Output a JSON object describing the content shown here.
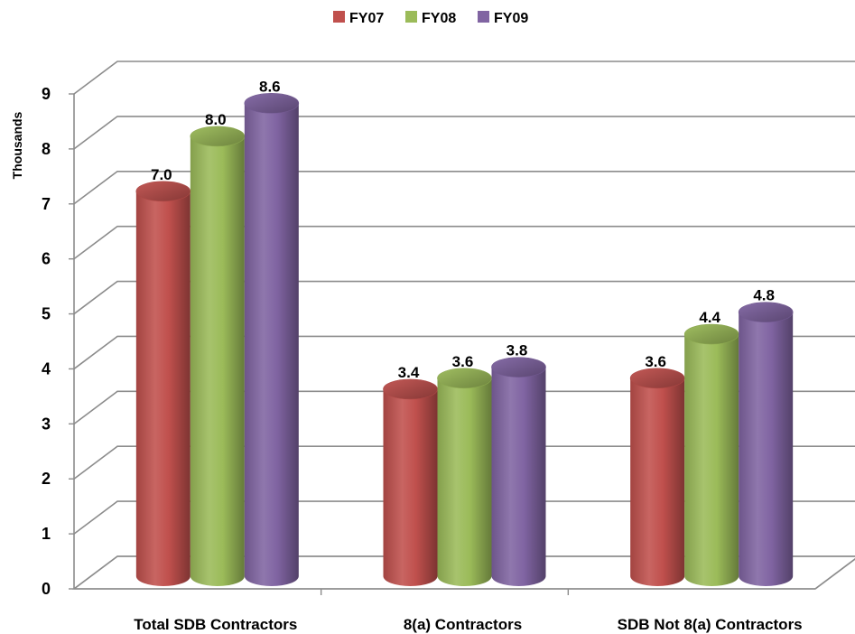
{
  "chart_data": {
    "type": "bar",
    "style": "3d-cylinder",
    "title": "",
    "xlabel": "",
    "ylabel": "Thousands",
    "ylim": [
      0,
      9
    ],
    "yticks": [
      0,
      1,
      2,
      3,
      4,
      5,
      6,
      7,
      8,
      9
    ],
    "grid": true,
    "legend_position": "top",
    "categories": [
      "Total SDB Contractors",
      "8(a) Contractors",
      "SDB Not 8(a) Contractors"
    ],
    "series": [
      {
        "name": "FY07",
        "color": "#c0504d",
        "values": [
          7.0,
          3.4,
          3.6
        ],
        "labels": [
          "7.0",
          "3.4",
          "3.6"
        ]
      },
      {
        "name": "FY08",
        "color": "#9bbb59",
        "values": [
          8.0,
          3.6,
          4.4
        ],
        "labels": [
          "8.0",
          "3.6",
          "4.4"
        ]
      },
      {
        "name": "FY09",
        "color": "#8064a2",
        "values": [
          8.6,
          3.8,
          4.8
        ],
        "labels": [
          "8.6",
          "3.8",
          "4.8"
        ]
      }
    ]
  }
}
